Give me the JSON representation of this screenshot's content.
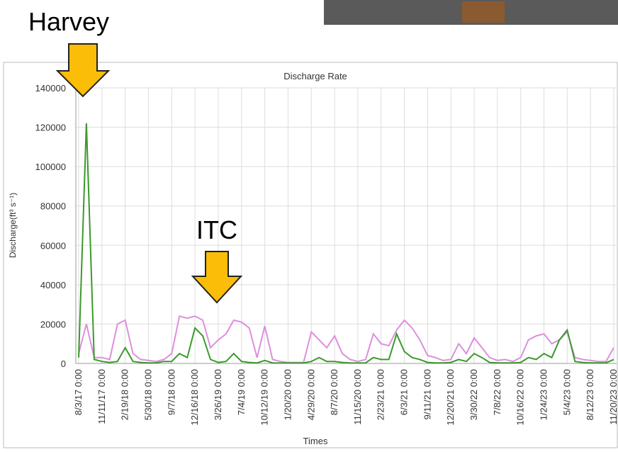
{
  "chart_data": {
    "type": "line",
    "title": "Discharge Rate",
    "x_label": "Times",
    "y_label": "Discharge(ft³ s⁻¹)",
    "annotations": [
      "Harvey",
      "ITC"
    ],
    "categories": [
      "8/3/17 0:00",
      null,
      null,
      "11/11/17 0:00",
      null,
      null,
      "2/19/18 0:00",
      null,
      null,
      "5/30/18 0:00",
      null,
      null,
      "9/7/18 0:00",
      null,
      null,
      "12/16/18 0:00",
      null,
      null,
      "3/26/19 0:00",
      null,
      null,
      "7/4/19 0:00",
      null,
      null,
      "10/12/19 0:00",
      null,
      null,
      "1/20/20 0:00",
      null,
      null,
      "4/29/20 0:00",
      null,
      null,
      "8/7/20 0:00",
      null,
      null,
      "11/15/20 0:00",
      null,
      null,
      "2/23/21 0:00",
      null,
      null,
      "6/3/21 0:00",
      null,
      null,
      "9/11/21 0:00",
      null,
      null,
      "12/20/21 0:00",
      null,
      null,
      "3/30/22 0:00",
      null,
      null,
      "7/8/22 0:00",
      null,
      null,
      "10/16/22 0:00",
      null,
      null,
      "1/24/23 0:00",
      null,
      null,
      "5/4/23 0:00",
      null,
      null,
      "8/12/23 0:00",
      null,
      null,
      "11/20/23 0:00"
    ],
    "series": [
      {
        "color": "#dd8fdd",
        "values": [
          5000,
          20000,
          3000,
          3000,
          2000,
          20000,
          22000,
          5000,
          2000,
          1500,
          1000,
          2000,
          5000,
          24000,
          23000,
          24000,
          22000,
          8000,
          12000,
          15000,
          22000,
          21000,
          18000,
          3000,
          19000,
          2000,
          1000,
          500,
          500,
          500,
          16000,
          12000,
          8000,
          14000,
          5000,
          2000,
          1000,
          2000,
          15000,
          10000,
          9000,
          17000,
          22000,
          18000,
          12000,
          4000,
          3000,
          1500,
          2000,
          10000,
          5000,
          13000,
          8000,
          3000,
          1500,
          2000,
          1000,
          3000,
          12000,
          14000,
          15000,
          10000,
          12000,
          16000,
          3000,
          2000,
          1500,
          1000,
          1000,
          8000
        ]
      },
      {
        "color": "#3a9a2a",
        "values": [
          3000,
          122000,
          2000,
          1000,
          500,
          1000,
          8000,
          1000,
          500,
          300,
          300,
          1000,
          1000,
          5000,
          3000,
          18000,
          14000,
          2000,
          500,
          1000,
          5000,
          1000,
          500,
          300,
          1500,
          300,
          200,
          200,
          200,
          200,
          1000,
          3000,
          1000,
          1000,
          500,
          300,
          200,
          300,
          3000,
          2000,
          2000,
          15000,
          6000,
          3000,
          2000,
          500,
          300,
          300,
          500,
          2000,
          1000,
          5000,
          3000,
          500,
          300,
          300,
          300,
          500,
          3000,
          2000,
          5000,
          3000,
          12000,
          17000,
          1000,
          500,
          300,
          300,
          300,
          2000
        ]
      }
    ],
    "ylim": [
      0,
      140000
    ],
    "yticks": [
      0,
      20000,
      40000,
      60000,
      80000,
      100000,
      120000,
      140000
    ],
    "grid": true
  }
}
